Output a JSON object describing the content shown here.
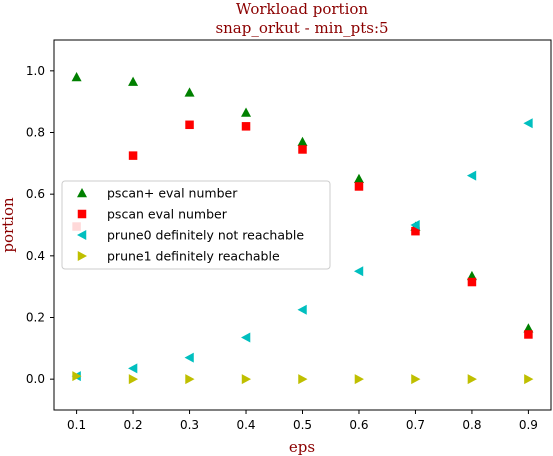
{
  "chart_data": {
    "type": "scatter",
    "title": "Workload portion",
    "subtitle": "snap_orkut - min_pts:5",
    "xlabel": "eps",
    "ylabel": "portion",
    "xlim": [
      0.06,
      0.94
    ],
    "ylim": [
      -0.1,
      1.1
    ],
    "xticks": [
      0.1,
      0.2,
      0.3,
      0.4,
      0.5,
      0.6,
      0.7,
      0.8,
      0.9
    ],
    "xtick_labels": [
      "0.1",
      "0.2",
      "0.3",
      "0.4",
      "0.5",
      "0.6",
      "0.7",
      "0.8",
      "0.9"
    ],
    "yticks": [
      0.0,
      0.2,
      0.4,
      0.6,
      0.8,
      1.0
    ],
    "ytick_labels": [
      "0.0",
      "0.2",
      "0.4",
      "0.6",
      "0.8",
      "1.0"
    ],
    "grid": false,
    "legend_position": "center-left",
    "series": [
      {
        "name": "pscan+ eval number",
        "marker": "triangle-up",
        "color": "#008000",
        "x": [
          0.1,
          0.2,
          0.3,
          0.4,
          0.5,
          0.6,
          0.7,
          0.8,
          0.9
        ],
        "y": [
          0.98,
          0.965,
          0.93,
          0.865,
          0.77,
          0.65,
          0.495,
          0.335,
          0.165
        ]
      },
      {
        "name": "pscan eval number",
        "marker": "square",
        "color": "#ff0000",
        "x": [
          0.1,
          0.2,
          0.3,
          0.4,
          0.5,
          0.6,
          0.7,
          0.8,
          0.9
        ],
        "y": [
          0.495,
          0.725,
          0.825,
          0.82,
          0.745,
          0.625,
          0.48,
          0.315,
          0.145
        ]
      },
      {
        "name": "prune0 definitely not reachable",
        "marker": "triangle-left",
        "color": "#00bfbf",
        "x": [
          0.1,
          0.2,
          0.3,
          0.4,
          0.5,
          0.6,
          0.7,
          0.8,
          0.9
        ],
        "y": [
          0.01,
          0.035,
          0.07,
          0.135,
          0.225,
          0.35,
          0.5,
          0.66,
          0.83
        ]
      },
      {
        "name": "prune1 definitely reachable",
        "marker": "triangle-right",
        "color": "#bfbf00",
        "x": [
          0.1,
          0.2,
          0.3,
          0.4,
          0.5,
          0.6,
          0.7,
          0.8,
          0.9
        ],
        "y": [
          0.01,
          0.0,
          0.0,
          0.0,
          0.0,
          0.0,
          0.0,
          0.0,
          0.0
        ]
      }
    ]
  }
}
